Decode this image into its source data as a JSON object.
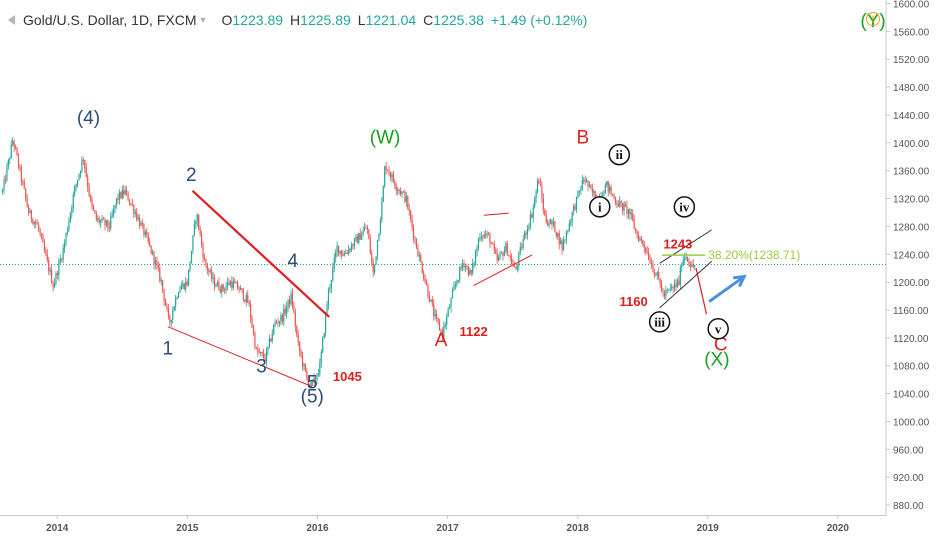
{
  "header": {
    "symbol": "Gold/U.S. Dollar, 1D, FXCM",
    "caret": "▾",
    "open_label": "O",
    "open": "1223.89",
    "high_label": "H",
    "high": "1225.89",
    "low_label": "L",
    "low": "1221.04",
    "close_label": "C",
    "close": "1225.38",
    "change": "+1.49 (+0.12%)",
    "alert_icon": "!"
  },
  "colors": {
    "up": "#26a69a",
    "down": "#ef5350",
    "wave_blue": "#2c4d74",
    "wave_red": "#e01e1e",
    "wave_green": "#17a121",
    "fib": "#9ccc3c",
    "current_price_line": "#26a69a",
    "forecast_arrow": "#4a90e2"
  },
  "chart_data": {
    "type": "candlestick",
    "title": "Gold/U.S. Dollar, 1D, FXCM",
    "x_ticks": [
      "2014",
      "2015",
      "2016",
      "2017",
      "2018",
      "2019",
      "2020"
    ],
    "y_ticks": [
      "1600.00",
      "1560.00",
      "1520.00",
      "1480.00",
      "1440.00",
      "1400.00",
      "1360.00",
      "1320.00",
      "1280.00",
      "1240.00",
      "1200.00",
      "1160.00",
      "1120.00",
      "1080.00",
      "1040.00",
      "1000.00",
      "960.00",
      "920.00",
      "880.00"
    ],
    "ylim": [
      870,
      1605
    ],
    "xlim": [
      2013.56,
      2020.37
    ],
    "last_price": 1225.38,
    "price_path": [
      [
        2013.58,
        1330
      ],
      [
        2013.66,
        1405
      ],
      [
        2013.78,
        1300
      ],
      [
        2013.85,
        1280
      ],
      [
        2013.92,
        1230
      ],
      [
        2013.97,
        1195
      ],
      [
        2014.05,
        1250
      ],
      [
        2014.13,
        1330
      ],
      [
        2014.2,
        1380
      ],
      [
        2014.26,
        1310
      ],
      [
        2014.3,
        1290
      ],
      [
        2014.4,
        1280
      ],
      [
        2014.46,
        1320
      ],
      [
        2014.52,
        1330
      ],
      [
        2014.6,
        1300
      ],
      [
        2014.67,
        1270
      ],
      [
        2014.75,
        1230
      ],
      [
        2014.8,
        1200
      ],
      [
        2014.86,
        1140
      ],
      [
        2014.93,
        1190
      ],
      [
        2015.0,
        1200
      ],
      [
        2015.07,
        1300
      ],
      [
        2015.13,
        1230
      ],
      [
        2015.2,
        1200
      ],
      [
        2015.27,
        1190
      ],
      [
        2015.33,
        1200
      ],
      [
        2015.4,
        1190
      ],
      [
        2015.47,
        1170
      ],
      [
        2015.53,
        1100
      ],
      [
        2015.6,
        1090
      ],
      [
        2015.67,
        1140
      ],
      [
        2015.73,
        1150
      ],
      [
        2015.8,
        1180
      ],
      [
        2015.85,
        1110
      ],
      [
        2015.92,
        1060
      ],
      [
        2015.96,
        1050
      ],
      [
        2016.02,
        1080
      ],
      [
        2016.08,
        1180
      ],
      [
        2016.15,
        1250
      ],
      [
        2016.2,
        1240
      ],
      [
        2016.3,
        1260
      ],
      [
        2016.38,
        1280
      ],
      [
        2016.43,
        1210
      ],
      [
        2016.5,
        1320
      ],
      [
        2016.52,
        1370
      ],
      [
        2016.6,
        1340
      ],
      [
        2016.68,
        1320
      ],
      [
        2016.75,
        1260
      ],
      [
        2016.83,
        1200
      ],
      [
        2016.9,
        1150
      ],
      [
        2016.96,
        1125
      ],
      [
        2017.05,
        1190
      ],
      [
        2017.12,
        1230
      ],
      [
        2017.18,
        1210
      ],
      [
        2017.25,
        1270
      ],
      [
        2017.32,
        1265
      ],
      [
        2017.38,
        1230
      ],
      [
        2017.45,
        1250
      ],
      [
        2017.52,
        1215
      ],
      [
        2017.58,
        1260
      ],
      [
        2017.65,
        1300
      ],
      [
        2017.7,
        1350
      ],
      [
        2017.75,
        1290
      ],
      [
        2017.82,
        1280
      ],
      [
        2017.88,
        1250
      ],
      [
        2017.96,
        1300
      ],
      [
        2018.05,
        1350
      ],
      [
        2018.1,
        1330
      ],
      [
        2018.16,
        1320
      ],
      [
        2018.22,
        1340
      ],
      [
        2018.28,
        1320
      ],
      [
        2018.33,
        1310
      ],
      [
        2018.4,
        1300
      ],
      [
        2018.45,
        1270
      ],
      [
        2018.52,
        1250
      ],
      [
        2018.58,
        1220
      ],
      [
        2018.63,
        1200
      ],
      [
        2018.66,
        1180
      ],
      [
        2018.72,
        1190
      ],
      [
        2018.78,
        1200
      ],
      [
        2018.8,
        1230
      ],
      [
        2018.83,
        1240
      ],
      [
        2018.88,
        1220
      ],
      [
        2018.9,
        1225
      ]
    ],
    "annotations": [
      {
        "text": "(4)",
        "x": 2014.24,
        "y": 1427,
        "color": "wave_blue"
      },
      {
        "text": "1",
        "x": 2014.85,
        "y": 1096,
        "color": "wave_blue"
      },
      {
        "text": "2",
        "x": 2015.03,
        "y": 1345,
        "color": "wave_blue"
      },
      {
        "text": "3",
        "x": 2015.57,
        "y": 1070,
        "color": "wave_blue"
      },
      {
        "text": "4",
        "x": 2015.81,
        "y": 1222,
        "color": "wave_blue"
      },
      {
        "text": "5",
        "x": 2015.96,
        "y": 1047,
        "color": "wave_blue"
      },
      {
        "text": "(5)",
        "x": 2015.96,
        "y": 1027,
        "color": "wave_blue"
      },
      {
        "text": "1045",
        "x": 2016.23,
        "y": 1058,
        "color": "wave_red",
        "bold": true,
        "size": 13
      },
      {
        "text": "(W)",
        "x": 2016.52,
        "y": 1399,
        "color": "wave_green"
      },
      {
        "text": "A",
        "x": 2016.95,
        "y": 1108,
        "color": "wave_red"
      },
      {
        "text": "1122",
        "x": 2017.2,
        "y": 1123,
        "color": "wave_red",
        "bold": true,
        "size": 13
      },
      {
        "text": "B",
        "x": 2018.04,
        "y": 1399,
        "color": "wave_red"
      },
      {
        "text": "1243",
        "x": 2018.77,
        "y": 1248,
        "color": "wave_red",
        "bold": true,
        "size": 13
      },
      {
        "text": "1160",
        "x": 2018.43,
        "y": 1166,
        "color": "wave_red",
        "bold": true,
        "size": 13
      },
      {
        "text": "C",
        "x": 2019.1,
        "y": 1102,
        "color": "wave_red"
      },
      {
        "text": "(X)",
        "x": 2019.07,
        "y": 1080,
        "color": "wave_green"
      },
      {
        "text": "(Y)",
        "x": 2020.27,
        "y": 1566,
        "color": "wave_green"
      }
    ],
    "circled_labels": [
      {
        "text": "ii",
        "x": 2018.32,
        "y": 1383
      },
      {
        "text": "i",
        "x": 2018.17,
        "y": 1308
      },
      {
        "text": "iv",
        "x": 2018.82,
        "y": 1308
      },
      {
        "text": "iii",
        "x": 2018.63,
        "y": 1143
      },
      {
        "text": "v",
        "x": 2019.08,
        "y": 1133
      }
    ],
    "lines": [
      {
        "x1": 2015.04,
        "y1": 1331,
        "x2": 2016.09,
        "y2": 1150,
        "color": "wave_red",
        "width": 2.2
      },
      {
        "x1": 2014.85,
        "y1": 1136,
        "x2": 2015.96,
        "y2": 1050,
        "color": "wave_red",
        "width": 1
      },
      {
        "x1": 2017.2,
        "y1": 1195,
        "x2": 2017.65,
        "y2": 1239,
        "color": "wave_red",
        "width": 1
      },
      {
        "x1": 2017.28,
        "y1": 1296,
        "x2": 2017.47,
        "y2": 1299,
        "color": "wave_red",
        "width": 1
      },
      {
        "x1": 2018.91,
        "y1": 1220,
        "x2": 2018.99,
        "y2": 1154,
        "color": "wave_red",
        "width": 1.2
      },
      {
        "x1": 2018.63,
        "y1": 1227,
        "x2": 2019.03,
        "y2": 1275,
        "color": "#333333",
        "width": 1
      },
      {
        "x1": 2018.63,
        "y1": 1163,
        "x2": 2019.03,
        "y2": 1230,
        "color": "#333333",
        "width": 1
      }
    ],
    "fib_level": {
      "label": "38.20%(1238.71)",
      "value": 1238.71,
      "x1": 2018.65,
      "x2": 2018.98
    },
    "forecast_arrow": {
      "x1": 2019.01,
      "y1": 1172,
      "x2": 2019.28,
      "y2": 1208
    }
  }
}
